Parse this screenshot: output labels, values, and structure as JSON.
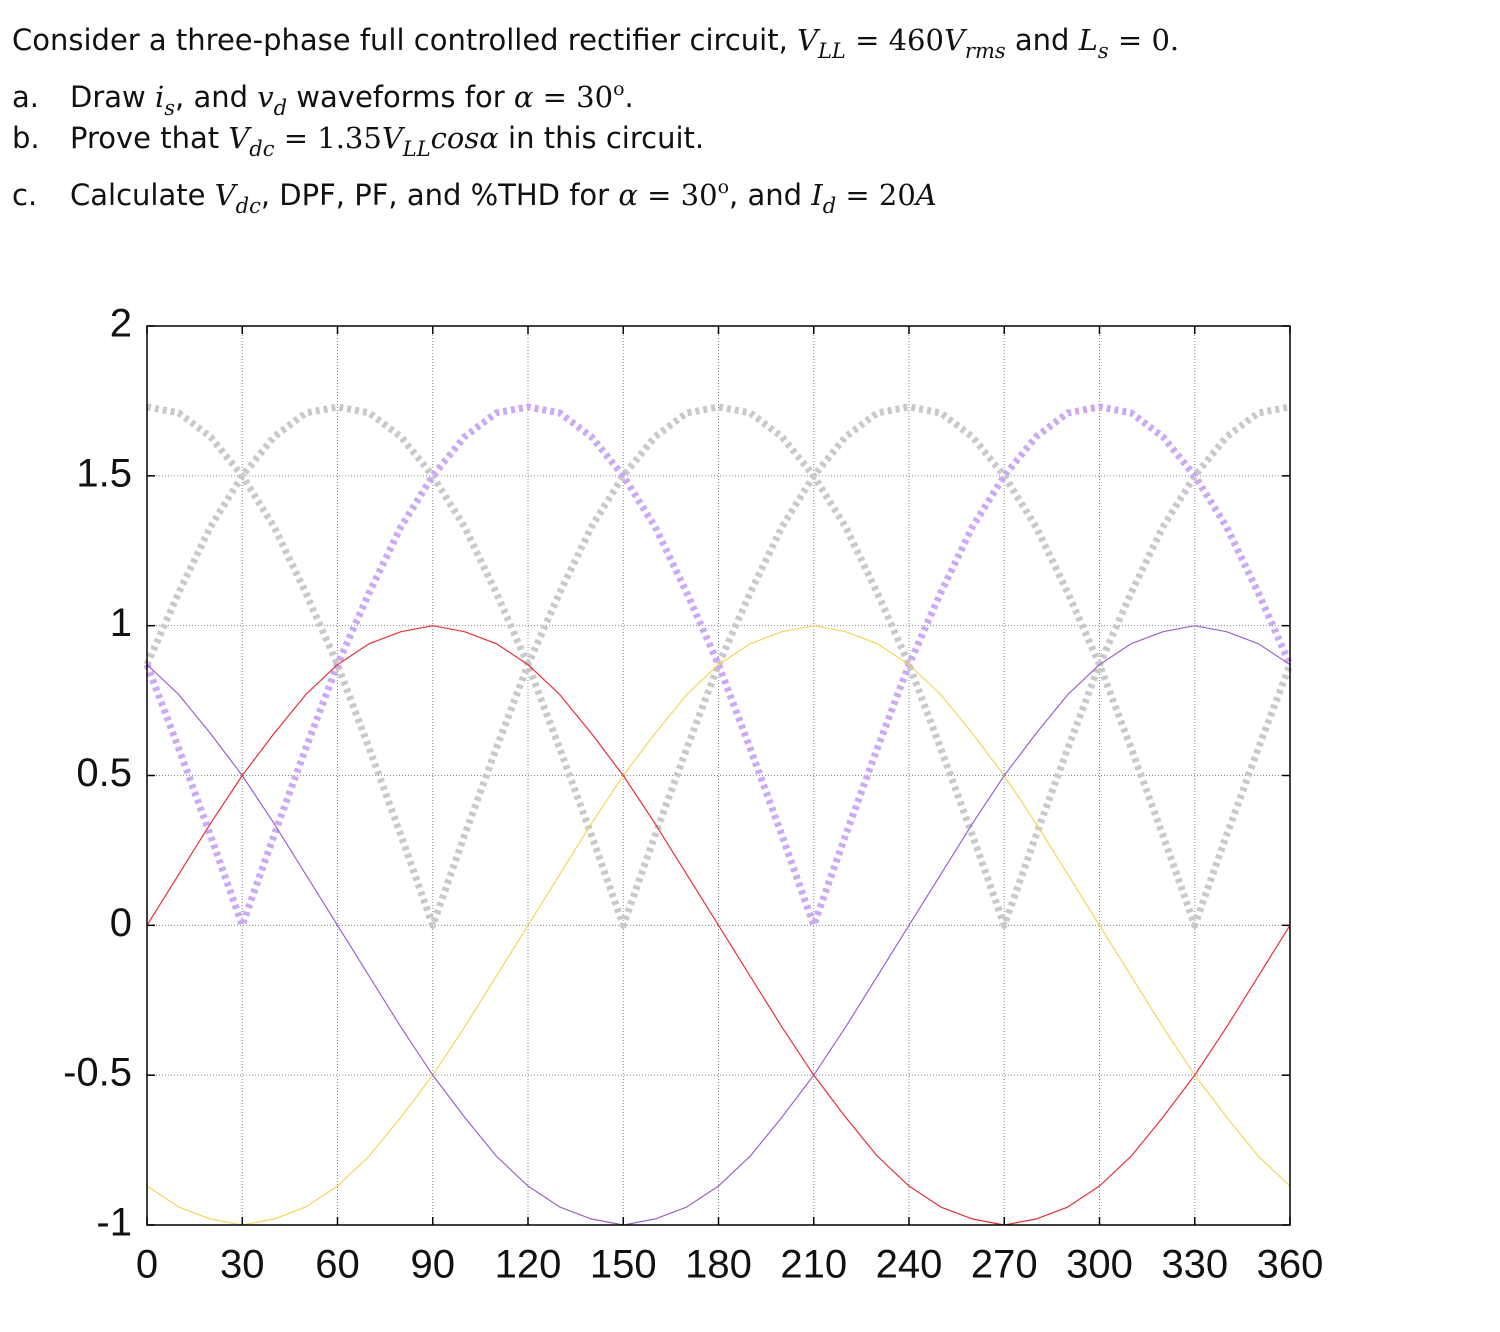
{
  "question": {
    "intro": [
      "Consider a three-phase full controlled rectifier circuit, ",
      "V",
      "LL",
      " = 460",
      "V",
      "rms",
      " and ",
      "L",
      "s",
      " = 0."
    ],
    "items": [
      {
        "label": "a.",
        "parts": [
          "Draw ",
          "i",
          "s",
          ", and ",
          "v",
          "d",
          " waveforms for ",
          "α",
          " = 30",
          "o",
          "."
        ]
      },
      {
        "label": "b.",
        "parts": [
          "Prove that ",
          "V",
          "dc",
          " = 1.35",
          "V",
          "LL",
          "cosα",
          " in this circuit."
        ]
      },
      {
        "label": "c.",
        "parts": [
          "Calculate ",
          "V",
          "dc",
          ", DPF, PF, and %THD for ",
          "α",
          " = 30",
          "o",
          ", and ",
          "I",
          "d",
          " = 20",
          "A"
        ]
      }
    ]
  },
  "chart_data": {
    "type": "line",
    "x": [
      0,
      10,
      20,
      30,
      40,
      50,
      60,
      70,
      80,
      90,
      100,
      110,
      120,
      130,
      140,
      150,
      160,
      170,
      180,
      190,
      200,
      210,
      220,
      230,
      240,
      250,
      260,
      270,
      280,
      290,
      300,
      310,
      320,
      330,
      340,
      350,
      360
    ],
    "xlim": [
      0,
      360
    ],
    "xticks": [
      0,
      30,
      60,
      90,
      120,
      150,
      180,
      210,
      240,
      270,
      300,
      330,
      360
    ],
    "ylim": [
      -1,
      2
    ],
    "yticks": [
      -1,
      -0.5,
      0,
      0.5,
      1,
      1.5,
      2
    ],
    "grid": true,
    "series": [
      {
        "color": "#c9c9c9",
        "line_style": "dotted",
        "values": [
          1.73,
          1.71,
          1.63,
          1.5,
          1.33,
          1.11,
          0.87,
          0.59,
          0.3,
          0,
          0.3,
          0.59,
          0.87,
          1.11,
          1.33,
          1.5,
          1.63,
          1.71,
          1.73,
          1.71,
          1.63,
          1.5,
          1.33,
          1.11,
          0.87,
          0.59,
          0.3,
          0,
          0.3,
          0.59,
          0.87,
          1.11,
          1.33,
          1.5,
          1.63,
          1.71,
          1.73
        ]
      },
      {
        "color": "#c9c9c9",
        "line_style": "dotted",
        "values": [
          0.87,
          1.11,
          1.33,
          1.5,
          1.63,
          1.71,
          1.73,
          1.71,
          1.63,
          1.5,
          1.33,
          1.11,
          0.87,
          0.59,
          0.3,
          0,
          0.3,
          0.59,
          0.87,
          1.11,
          1.33,
          1.5,
          1.63,
          1.71,
          1.73,
          1.71,
          1.63,
          1.5,
          1.33,
          1.11,
          0.87,
          0.59,
          0.3,
          0,
          0.3,
          0.59,
          0.87
        ]
      },
      {
        "color": "#cba9f6",
        "line_style": "dotted",
        "values": [
          0.87,
          0.59,
          0.3,
          0,
          0.3,
          0.59,
          0.87,
          1.11,
          1.33,
          1.5,
          1.63,
          1.71,
          1.73,
          1.71,
          1.63,
          1.5,
          1.33,
          1.11,
          0.87,
          0.59,
          0.3,
          0,
          0.3,
          0.59,
          0.87,
          1.11,
          1.33,
          1.5,
          1.63,
          1.71,
          1.73,
          1.71,
          1.63,
          1.5,
          1.33,
          1.11,
          0.87
        ]
      },
      {
        "color": "#f6d55a",
        "line_style": "solid",
        "values": [
          -0.87,
          -0.94,
          -0.98,
          -1,
          -0.98,
          -0.94,
          -0.87,
          -0.77,
          -0.64,
          -0.5,
          -0.34,
          -0.17,
          0,
          0.17,
          0.34,
          0.5,
          0.64,
          0.77,
          0.87,
          0.94,
          0.98,
          1,
          0.98,
          0.94,
          0.87,
          0.77,
          0.64,
          0.5,
          0.34,
          0.17,
          0,
          -0.17,
          -0.34,
          -0.5,
          -0.64,
          -0.77,
          -0.87
        ]
      },
      {
        "color": "#9d62c9",
        "line_style": "solid",
        "values": [
          0.87,
          0.77,
          0.64,
          0.5,
          0.34,
          0.17,
          0,
          -0.17,
          -0.34,
          -0.5,
          -0.64,
          -0.77,
          -0.87,
          -0.94,
          -0.98,
          -1,
          -0.98,
          -0.94,
          -0.87,
          -0.77,
          -0.64,
          -0.5,
          -0.34,
          -0.17,
          0,
          0.17,
          0.34,
          0.5,
          0.64,
          0.77,
          0.87,
          0.94,
          0.98,
          1,
          0.98,
          0.94,
          0.87
        ]
      },
      {
        "color": "#e8303a",
        "line_style": "solid",
        "values": [
          0,
          0.17,
          0.34,
          0.5,
          0.64,
          0.77,
          0.87,
          0.94,
          0.98,
          1,
          0.98,
          0.94,
          0.87,
          0.77,
          0.64,
          0.5,
          0.34,
          0.17,
          0,
          -0.17,
          -0.34,
          -0.5,
          -0.64,
          -0.77,
          -0.87,
          -0.94,
          -0.98,
          -1,
          -0.98,
          -0.94,
          -0.87,
          -0.77,
          -0.64,
          -0.5,
          -0.34,
          -0.17,
          0
        ]
      }
    ]
  }
}
